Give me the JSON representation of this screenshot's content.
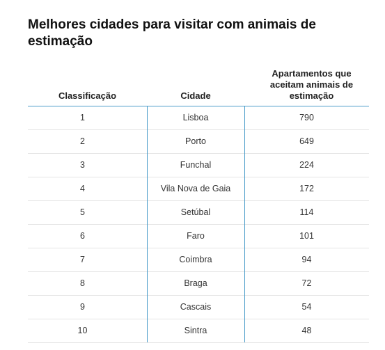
{
  "header": {
    "title": "Melhores cidades para visitar com animais de estimação"
  },
  "table": {
    "columns": [
      "Classificação",
      "Cidade",
      "Apartamentos que aceitam animais de estimação"
    ],
    "rows": [
      [
        1,
        "Lisboa",
        790
      ],
      [
        2,
        "Porto",
        649
      ],
      [
        3,
        "Funchal",
        224
      ],
      [
        4,
        "Vila Nova de Gaia",
        172
      ],
      [
        5,
        "Setúbal",
        114
      ],
      [
        6,
        "Faro",
        101
      ],
      [
        7,
        "Coimbra",
        94
      ],
      [
        8,
        "Braga",
        72
      ],
      [
        9,
        "Cascais",
        54
      ],
      [
        10,
        "Sintra",
        48
      ]
    ]
  }
}
